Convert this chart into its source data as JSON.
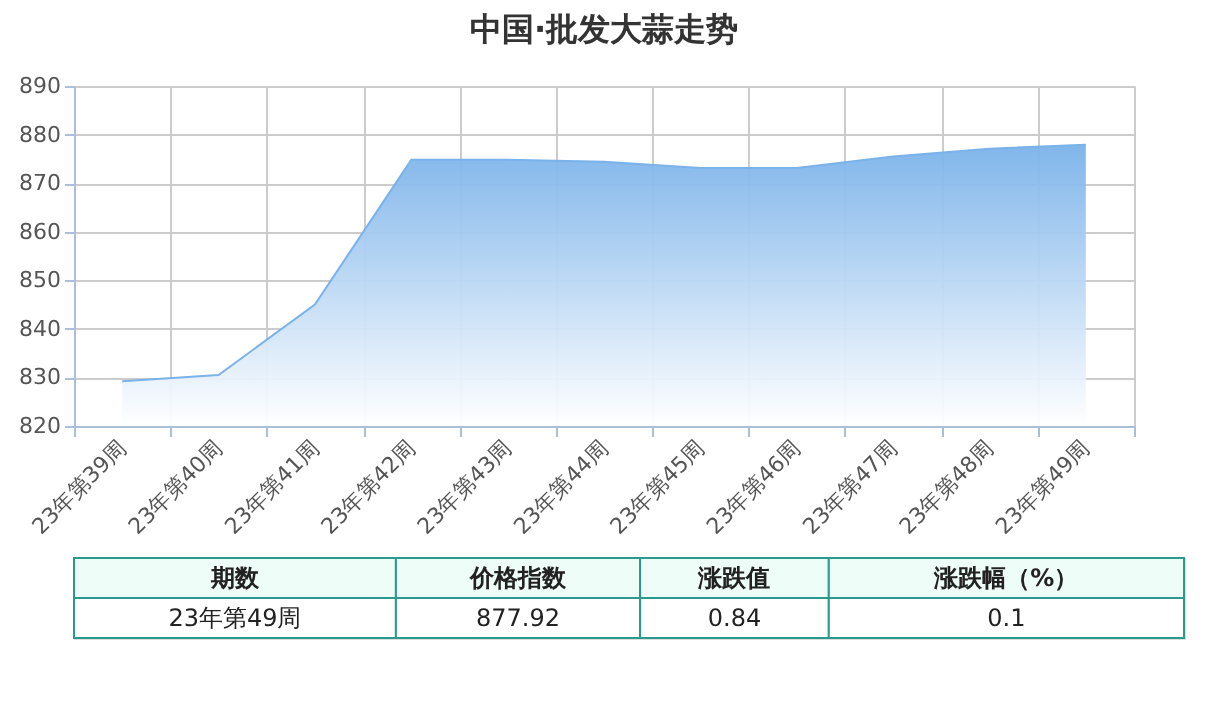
{
  "chart_data": {
    "type": "area",
    "title": "中国·批发大蒜走势",
    "categories": [
      "23年第39周",
      "23年第40周",
      "23年第41周",
      "23年第42周",
      "23年第43周",
      "23年第44周",
      "23年第45周",
      "23年第46周",
      "23年第47周",
      "23年第48周",
      "23年第49周"
    ],
    "series": [
      {
        "color": "#7ab2ea",
        "values": [
          829.2,
          830.5,
          845.0,
          874.8,
          874.8,
          874.4,
          873.1,
          873.1,
          875.5,
          877.1,
          877.9
        ]
      }
    ],
    "ylim": [
      820,
      890
    ],
    "yticks": [
      820,
      830,
      840,
      850,
      860,
      870,
      880,
      890
    ],
    "grid": true,
    "annotations": [
      "期数",
      "价格指数",
      "涨跌值",
      "涨跌幅（%）",
      "23年第49周",
      "877.92",
      "0.84",
      "0.1"
    ]
  }
}
